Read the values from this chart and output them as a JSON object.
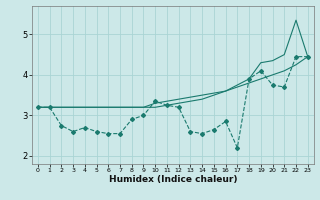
{
  "xlabel": "Humidex (Indice chaleur)",
  "ylabel": "",
  "bg_color": "#cce8e8",
  "grid_color": "#aad4d4",
  "line_color": "#1a7a6e",
  "x_values": [
    0,
    1,
    2,
    3,
    4,
    5,
    6,
    7,
    8,
    9,
    10,
    11,
    12,
    13,
    14,
    15,
    16,
    17,
    18,
    19,
    20,
    21,
    22,
    23
  ],
  "line1_y": [
    3.2,
    3.2,
    2.75,
    2.6,
    2.7,
    2.6,
    2.55,
    2.55,
    2.9,
    3.0,
    3.35,
    3.25,
    3.2,
    2.6,
    2.55,
    2.65,
    2.85,
    2.2,
    3.9,
    4.1,
    3.75,
    3.7,
    4.45,
    4.45
  ],
  "line2_y": [
    3.2,
    3.2,
    3.2,
    3.2,
    3.2,
    3.2,
    3.2,
    3.2,
    3.2,
    3.2,
    3.3,
    3.35,
    3.4,
    3.45,
    3.5,
    3.55,
    3.6,
    3.7,
    3.8,
    3.9,
    4.0,
    4.1,
    4.25,
    4.45
  ],
  "line3_y": [
    3.2,
    3.2,
    3.2,
    3.2,
    3.2,
    3.2,
    3.2,
    3.2,
    3.2,
    3.2,
    3.2,
    3.25,
    3.3,
    3.35,
    3.4,
    3.5,
    3.6,
    3.75,
    3.9,
    4.3,
    4.35,
    4.5,
    5.35,
    4.45
  ],
  "ylim": [
    1.8,
    5.7
  ],
  "yticks": [
    2,
    3,
    4,
    5
  ],
  "xticks": [
    0,
    1,
    2,
    3,
    4,
    5,
    6,
    7,
    8,
    9,
    10,
    11,
    12,
    13,
    14,
    15,
    16,
    17,
    18,
    19,
    20,
    21,
    22,
    23
  ]
}
